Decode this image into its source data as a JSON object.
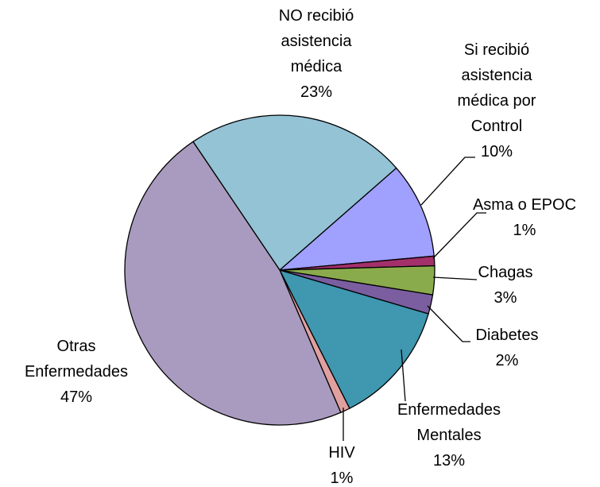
{
  "chart_data": {
    "type": "pie",
    "categories": [
      "NO recibió asistencia médica",
      "Si recibió asistencia médica por Control",
      "Asma o EPOC",
      "Chagas",
      "Diabetes",
      "Enfermedades Mentales",
      "HIV",
      "Otras Enfermedades"
    ],
    "values": [
      23,
      10,
      1,
      3,
      2,
      13,
      1,
      47
    ],
    "value_labels": [
      "23%",
      "10%",
      "1%",
      "3%",
      "2%",
      "13%",
      "1%",
      "47%"
    ],
    "colors": [
      "#93c3d4",
      "#a0a0ff",
      "#a3306b",
      "#8aab4c",
      "#7a5ea0",
      "#3f97b0",
      "#e0a0a0",
      "#a99bbf"
    ]
  }
}
